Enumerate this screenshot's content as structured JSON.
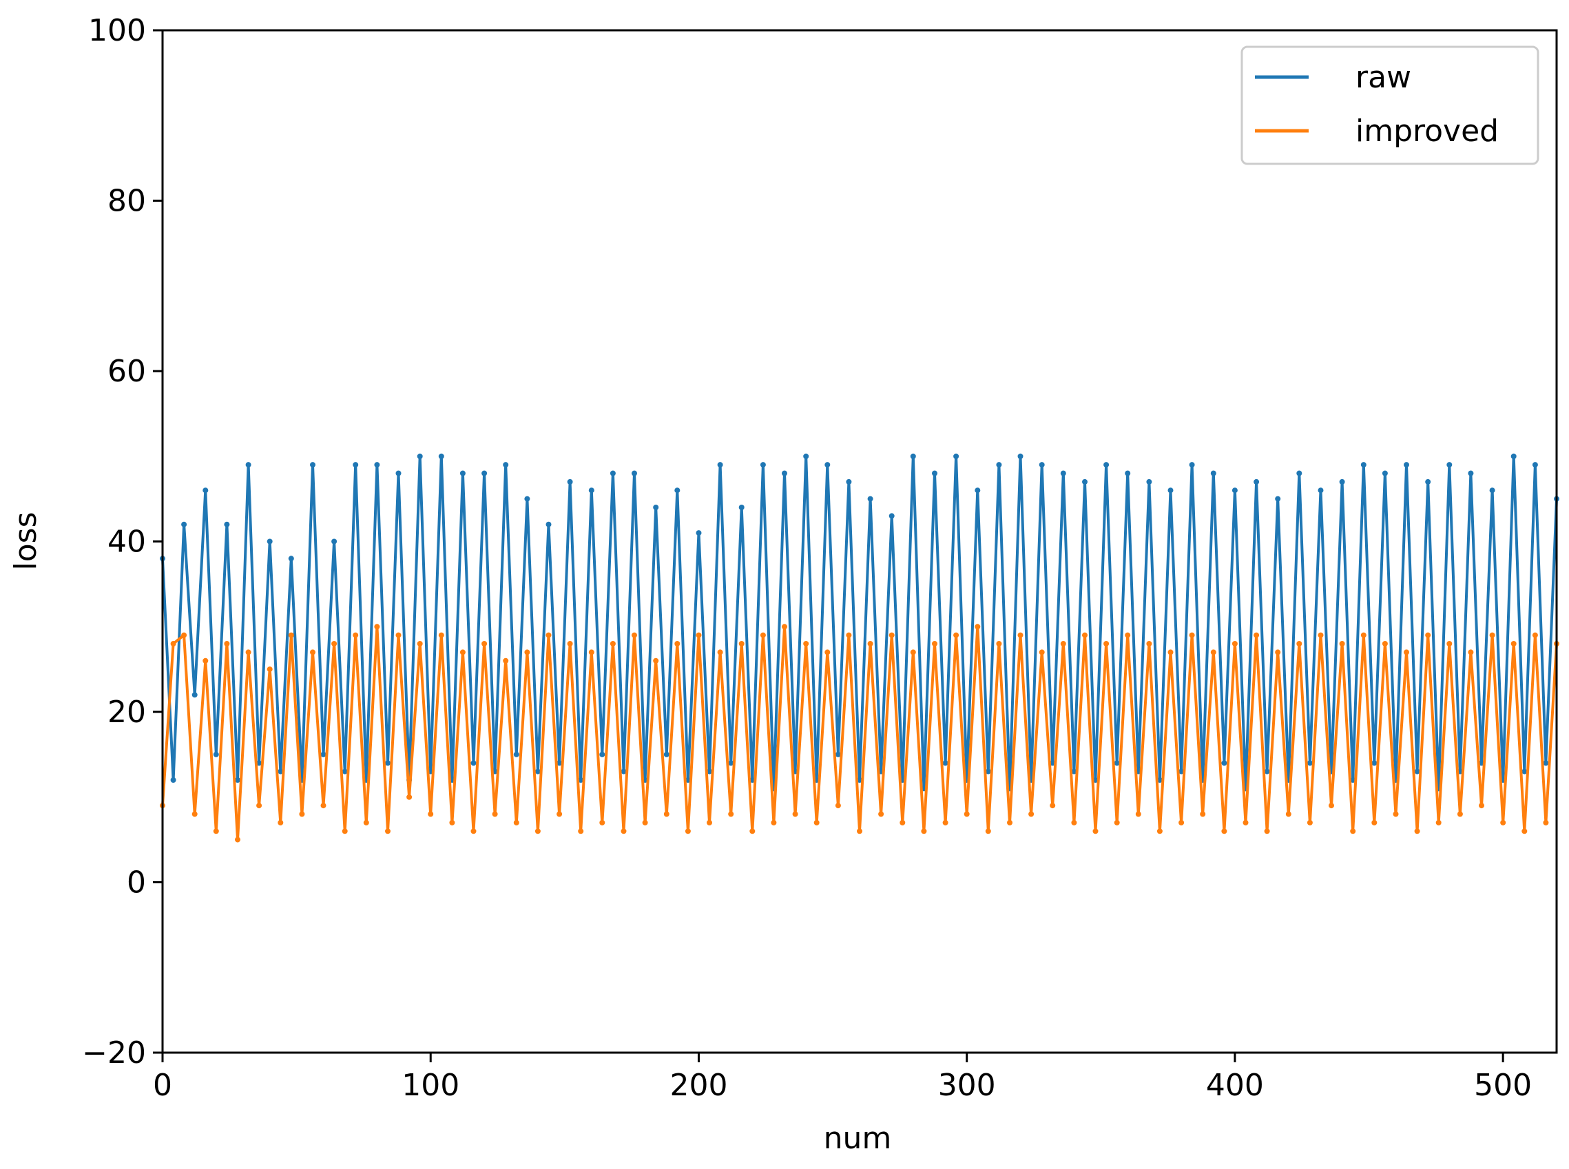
{
  "chart_data": {
    "type": "line",
    "title": "",
    "xlabel": "num",
    "ylabel": "loss",
    "xlim": [
      0,
      520
    ],
    "ylim": [
      -20,
      100
    ],
    "x_ticks": [
      0,
      100,
      200,
      300,
      400,
      500
    ],
    "y_ticks": [
      -20,
      0,
      20,
      40,
      60,
      80,
      100
    ],
    "y_tick_labels": [
      "−20",
      "0",
      "20",
      "40",
      "60",
      "80",
      "100"
    ],
    "grid": false,
    "legend_position": "top-right",
    "marker": "star",
    "series": [
      {
        "name": "raw",
        "color": "#1f77b4",
        "x": [
          0,
          4,
          8,
          12,
          16,
          20,
          24,
          28,
          32,
          36,
          40,
          44,
          48,
          52,
          56,
          60,
          64,
          68,
          72,
          76,
          80,
          84,
          88,
          92,
          96,
          100,
          104,
          108,
          112,
          116,
          120,
          124,
          128,
          132,
          136,
          140,
          144,
          148,
          152,
          156,
          160,
          164,
          168,
          172,
          176,
          180,
          184,
          188,
          192,
          196,
          200,
          204,
          208,
          212,
          216,
          220,
          224,
          228,
          232,
          236,
          240,
          244,
          248,
          252,
          256,
          260,
          264,
          268,
          272,
          276,
          280,
          284,
          288,
          292,
          296,
          300,
          304,
          308,
          312,
          316,
          320,
          324,
          328,
          332,
          336,
          340,
          344,
          348,
          352,
          356,
          360,
          364,
          368,
          372,
          376,
          380,
          384,
          388,
          392,
          396,
          400,
          404,
          408,
          412,
          416,
          420,
          424,
          428,
          432,
          436,
          440,
          444,
          448,
          452,
          456,
          460,
          464,
          468,
          472,
          476,
          480,
          484,
          488,
          492,
          496,
          500,
          504,
          508,
          512,
          516,
          520
        ],
        "y": [
          38,
          12,
          42,
          22,
          46,
          15,
          42,
          12,
          49,
          14,
          40,
          13,
          38,
          12,
          49,
          15,
          40,
          13,
          49,
          12,
          49,
          14,
          48,
          12,
          50,
          13,
          50,
          12,
          48,
          14,
          48,
          13,
          49,
          15,
          45,
          13,
          42,
          14,
          47,
          12,
          46,
          15,
          48,
          13,
          48,
          12,
          44,
          15,
          46,
          12,
          41,
          13,
          49,
          14,
          44,
          12,
          49,
          11,
          48,
          13,
          50,
          12,
          49,
          15,
          47,
          12,
          45,
          13,
          43,
          12,
          50,
          11,
          48,
          14,
          50,
          12,
          46,
          13,
          49,
          11,
          50,
          12,
          49,
          14,
          48,
          13,
          47,
          12,
          49,
          14,
          48,
          13,
          47,
          12,
          46,
          13,
          49,
          12,
          48,
          14,
          46,
          11,
          47,
          13,
          45,
          12,
          48,
          14,
          46,
          13,
          47,
          12,
          49,
          14,
          48,
          12,
          49,
          13,
          47,
          11,
          49,
          13,
          48,
          14,
          46,
          12,
          50,
          13,
          49,
          14,
          45
        ]
      },
      {
        "name": "improved",
        "color": "#ff7f0e",
        "x": [
          0,
          4,
          8,
          12,
          16,
          20,
          24,
          28,
          32,
          36,
          40,
          44,
          48,
          52,
          56,
          60,
          64,
          68,
          72,
          76,
          80,
          84,
          88,
          92,
          96,
          100,
          104,
          108,
          112,
          116,
          120,
          124,
          128,
          132,
          136,
          140,
          144,
          148,
          152,
          156,
          160,
          164,
          168,
          172,
          176,
          180,
          184,
          188,
          192,
          196,
          200,
          204,
          208,
          212,
          216,
          220,
          224,
          228,
          232,
          236,
          240,
          244,
          248,
          252,
          256,
          260,
          264,
          268,
          272,
          276,
          280,
          284,
          288,
          292,
          296,
          300,
          304,
          308,
          312,
          316,
          320,
          324,
          328,
          332,
          336,
          340,
          344,
          348,
          352,
          356,
          360,
          364,
          368,
          372,
          376,
          380,
          384,
          388,
          392,
          396,
          400,
          404,
          408,
          412,
          416,
          420,
          424,
          428,
          432,
          436,
          440,
          444,
          448,
          452,
          456,
          460,
          464,
          468,
          472,
          476,
          480,
          484,
          488,
          492,
          496,
          500,
          504,
          508,
          512,
          516,
          520
        ],
        "y": [
          9,
          28,
          29,
          8,
          26,
          6,
          28,
          5,
          27,
          9,
          25,
          7,
          29,
          8,
          27,
          9,
          28,
          6,
          29,
          7,
          30,
          6,
          29,
          10,
          28,
          8,
          29,
          7,
          27,
          6,
          28,
          8,
          26,
          7,
          27,
          6,
          29,
          8,
          28,
          6,
          27,
          7,
          28,
          6,
          29,
          7,
          26,
          8,
          28,
          6,
          29,
          7,
          27,
          8,
          28,
          6,
          29,
          7,
          30,
          8,
          28,
          7,
          27,
          9,
          29,
          6,
          28,
          8,
          29,
          7,
          27,
          6,
          28,
          7,
          29,
          8,
          30,
          6,
          28,
          7,
          29,
          8,
          27,
          9,
          28,
          7,
          29,
          6,
          28,
          7,
          29,
          8,
          28,
          6,
          27,
          7,
          29,
          8,
          27,
          6,
          28,
          7,
          29,
          6,
          27,
          8,
          28,
          7,
          29,
          9,
          28,
          6,
          29,
          7,
          28,
          8,
          27,
          6,
          29,
          7,
          28,
          8,
          27,
          9,
          29,
          7,
          28,
          6,
          29,
          7,
          28
        ]
      }
    ]
  }
}
